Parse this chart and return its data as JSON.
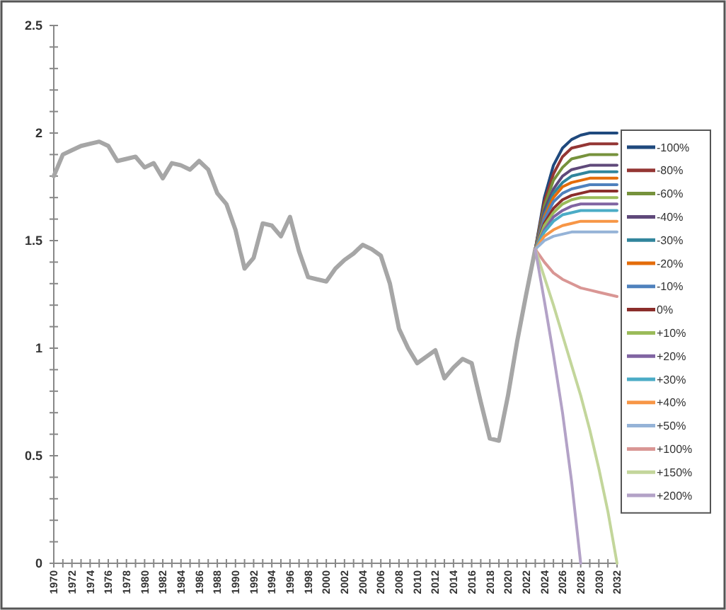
{
  "chart_data": {
    "type": "line",
    "ylim": [
      0,
      2.5
    ],
    "yticks": [
      0,
      {
        "value": 0.1,
        "label": null
      },
      {
        "value": 0.2,
        "label": null
      },
      {
        "value": 0.3,
        "label": null
      },
      {
        "value": 0.4,
        "label": null
      },
      0.5,
      {
        "value": 0.6,
        "label": null
      },
      {
        "value": 0.7,
        "label": null
      },
      {
        "value": 0.8,
        "label": null
      },
      {
        "value": 0.9,
        "label": null
      },
      1,
      {
        "value": 1.1,
        "label": null
      },
      {
        "value": 1.2,
        "label": null
      },
      {
        "value": 1.3,
        "label": null
      },
      {
        "value": 1.4,
        "label": null
      },
      1.5,
      {
        "value": 1.6,
        "label": null
      },
      {
        "value": 1.7,
        "label": null
      },
      {
        "value": 1.8,
        "label": null
      },
      {
        "value": 1.9,
        "label": null
      },
      2,
      {
        "value": 2.1,
        "label": null
      },
      {
        "value": 2.2,
        "label": null
      },
      {
        "value": 2.3,
        "label": null
      },
      {
        "value": 2.4,
        "label": null
      },
      2.5
    ],
    "xlim": [
      1970,
      2032
    ],
    "xticks": [
      1970,
      {
        "value": 1971,
        "label": null
      },
      1972,
      {
        "value": 1973,
        "label": null
      },
      1974,
      {
        "value": 1975,
        "label": null
      },
      1976,
      {
        "value": 1977,
        "label": null
      },
      1978,
      {
        "value": 1979,
        "label": null
      },
      1980,
      {
        "value": 1981,
        "label": null
      },
      1982,
      {
        "value": 1983,
        "label": null
      },
      1984,
      {
        "value": 1985,
        "label": null
      },
      1986,
      {
        "value": 1987,
        "label": null
      },
      1988,
      {
        "value": 1989,
        "label": null
      },
      1990,
      {
        "value": 1991,
        "label": null
      },
      1992,
      {
        "value": 1993,
        "label": null
      },
      1994,
      {
        "value": 1995,
        "label": null
      },
      1996,
      {
        "value": 1997,
        "label": null
      },
      1998,
      {
        "value": 1999,
        "label": null
      },
      2000,
      {
        "value": 2001,
        "label": null
      },
      2002,
      {
        "value": 2003,
        "label": null
      },
      2004,
      {
        "value": 2005,
        "label": null
      },
      2006,
      {
        "value": 2007,
        "label": null
      },
      2008,
      {
        "value": 2009,
        "label": null
      },
      2010,
      {
        "value": 2011,
        "label": null
      },
      2012,
      {
        "value": 2013,
        "label": null
      },
      2014,
      {
        "value": 2015,
        "label": null
      },
      2016,
      {
        "value": 2017,
        "label": null
      },
      2018,
      {
        "value": 2019,
        "label": null
      },
      2020,
      {
        "value": 2021,
        "label": null
      },
      2022,
      {
        "value": 2023,
        "label": null
      },
      2024,
      {
        "value": 2025,
        "label": null
      },
      2026,
      {
        "value": 2027,
        "label": null
      },
      2028,
      {
        "value": 2029,
        "label": null
      },
      2030,
      {
        "value": 2031,
        "label": null
      },
      2032
    ],
    "legend": "right",
    "grid": false,
    "marker": "none",
    "line_style": "solid",
    "series": [
      {
        "color": "#a6a6a6",
        "x": [
          1970,
          1971,
          1972,
          1973,
          1974,
          1975,
          1976,
          1977,
          1978,
          1979,
          1980,
          1981,
          1982,
          1983,
          1984,
          1985,
          1986,
          1987,
          1988,
          1989,
          1990,
          1991,
          1992,
          1993,
          1994,
          1995,
          1996,
          1997,
          1998,
          1999,
          2000,
          2001,
          2002,
          2003,
          2004,
          2005,
          2006,
          2007,
          2008,
          2009,
          2010,
          2011,
          2012,
          2013,
          2014,
          2015,
          2016,
          2017,
          2018,
          2019,
          2020,
          2021,
          2022,
          2023
        ],
        "values": [
          1.8,
          1.9,
          1.92,
          1.94,
          1.95,
          1.96,
          1.94,
          1.87,
          1.88,
          1.89,
          1.84,
          1.86,
          1.79,
          1.86,
          1.85,
          1.83,
          1.87,
          1.83,
          1.72,
          1.67,
          1.55,
          1.37,
          1.42,
          1.58,
          1.57,
          1.52,
          1.61,
          1.45,
          1.33,
          1.32,
          1.31,
          1.37,
          1.41,
          1.44,
          1.48,
          1.46,
          1.43,
          1.3,
          1.09,
          1.0,
          0.93,
          0.96,
          0.99,
          0.86,
          0.91,
          0.95,
          0.93,
          0.75,
          0.58,
          0.57,
          0.78,
          1.03,
          1.25,
          1.46
        ]
      },
      {
        "name": "-100%",
        "color": "#1f497d",
        "x": [
          2023,
          2024,
          2025,
          2026,
          2027,
          2028,
          2029,
          2030,
          2031,
          2032
        ],
        "values": [
          1.46,
          1.7,
          1.85,
          1.93,
          1.97,
          1.99,
          2.0,
          2.0,
          2.0,
          2.0
        ]
      },
      {
        "name": "-80%",
        "color": "#943634",
        "x": [
          2023,
          2024,
          2025,
          2026,
          2027,
          2028,
          2029,
          2030,
          2031,
          2032
        ],
        "values": [
          1.46,
          1.68,
          1.81,
          1.89,
          1.93,
          1.94,
          1.95,
          1.95,
          1.95,
          1.95
        ]
      },
      {
        "name": "-60%",
        "color": "#76923c",
        "x": [
          2023,
          2024,
          2025,
          2026,
          2027,
          2028,
          2029,
          2030,
          2031,
          2032
        ],
        "values": [
          1.46,
          1.66,
          1.78,
          1.84,
          1.88,
          1.89,
          1.9,
          1.9,
          1.9,
          1.9
        ]
      },
      {
        "name": "-40%",
        "color": "#5f497a",
        "x": [
          2023,
          2024,
          2025,
          2026,
          2027,
          2028,
          2029,
          2030,
          2031,
          2032
        ],
        "values": [
          1.46,
          1.64,
          1.74,
          1.8,
          1.83,
          1.84,
          1.85,
          1.85,
          1.85,
          1.85
        ]
      },
      {
        "name": "-30%",
        "color": "#31859c",
        "x": [
          2023,
          2024,
          2025,
          2026,
          2027,
          2028,
          2029,
          2030,
          2031,
          2032
        ],
        "values": [
          1.46,
          1.62,
          1.72,
          1.77,
          1.8,
          1.81,
          1.82,
          1.82,
          1.82,
          1.82
        ]
      },
      {
        "name": "-20%",
        "color": "#e46c0a",
        "x": [
          2023,
          2024,
          2025,
          2026,
          2027,
          2028,
          2029,
          2030,
          2031,
          2032
        ],
        "values": [
          1.46,
          1.61,
          1.7,
          1.75,
          1.77,
          1.78,
          1.79,
          1.79,
          1.79,
          1.79
        ]
      },
      {
        "name": "-10%",
        "color": "#4f81bd",
        "x": [
          2023,
          2024,
          2025,
          2026,
          2027,
          2028,
          2029,
          2030,
          2031,
          2032
        ],
        "values": [
          1.46,
          1.6,
          1.68,
          1.72,
          1.74,
          1.75,
          1.76,
          1.76,
          1.76,
          1.76
        ]
      },
      {
        "name": "0%",
        "color": "#8b2e2b",
        "x": [
          2023,
          2024,
          2025,
          2026,
          2027,
          2028,
          2029,
          2030,
          2031,
          2032
        ],
        "values": [
          1.46,
          1.58,
          1.65,
          1.69,
          1.71,
          1.72,
          1.73,
          1.73,
          1.73,
          1.73
        ]
      },
      {
        "name": "+10%",
        "color": "#9bbb59",
        "x": [
          2023,
          2024,
          2025,
          2026,
          2027,
          2028,
          2029,
          2030,
          2031,
          2032
        ],
        "values": [
          1.46,
          1.57,
          1.63,
          1.67,
          1.69,
          1.7,
          1.7,
          1.7,
          1.7,
          1.7
        ]
      },
      {
        "name": "+20%",
        "color": "#8064a2",
        "x": [
          2023,
          2024,
          2025,
          2026,
          2027,
          2028,
          2029,
          2030,
          2031,
          2032
        ],
        "values": [
          1.46,
          1.55,
          1.61,
          1.64,
          1.66,
          1.67,
          1.67,
          1.67,
          1.67,
          1.67
        ]
      },
      {
        "name": "+30%",
        "color": "#4bacc6",
        "x": [
          2023,
          2024,
          2025,
          2026,
          2027,
          2028,
          2029,
          2030,
          2031,
          2032
        ],
        "values": [
          1.46,
          1.54,
          1.59,
          1.62,
          1.63,
          1.64,
          1.64,
          1.64,
          1.64,
          1.64
        ]
      },
      {
        "name": "+40%",
        "color": "#f79646",
        "x": [
          2023,
          2024,
          2025,
          2026,
          2027,
          2028,
          2029,
          2030,
          2031,
          2032
        ],
        "values": [
          1.46,
          1.52,
          1.55,
          1.57,
          1.58,
          1.59,
          1.59,
          1.59,
          1.59,
          1.59
        ]
      },
      {
        "name": "+50%",
        "color": "#95b3d7",
        "x": [
          2023,
          2024,
          2025,
          2026,
          2027,
          2028,
          2029,
          2030,
          2031,
          2032
        ],
        "values": [
          1.46,
          1.5,
          1.52,
          1.53,
          1.54,
          1.54,
          1.54,
          1.54,
          1.54,
          1.54
        ]
      },
      {
        "name": "+100%",
        "color": "#d99694",
        "x": [
          2023,
          2024,
          2025,
          2026,
          2027,
          2028,
          2029,
          2030,
          2031,
          2032
        ],
        "values": [
          1.46,
          1.4,
          1.35,
          1.32,
          1.3,
          1.28,
          1.27,
          1.26,
          1.25,
          1.24
        ]
      },
      {
        "name": "+150%",
        "color": "#c3d69b",
        "x": [
          2023,
          2024,
          2025,
          2026,
          2027,
          2028,
          2029,
          2030,
          2031,
          2032
        ],
        "values": [
          1.46,
          1.33,
          1.2,
          1.06,
          0.92,
          0.78,
          0.62,
          0.44,
          0.24,
          0
        ]
      },
      {
        "name": "+200%",
        "color": "#b3a2c7",
        "x": [
          2023,
          2024,
          2025,
          2026,
          2027,
          2028
        ],
        "values": [
          1.46,
          1.22,
          0.97,
          0.7,
          0.38,
          0
        ]
      }
    ]
  }
}
